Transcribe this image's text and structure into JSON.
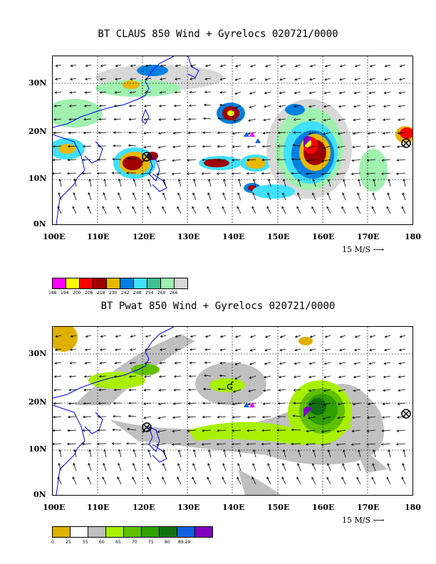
{
  "panel1": {
    "title": "BT CLAUS 850 Wind + Gyrelocs 020721/0000",
    "lat_labels": [
      "30N",
      "20N",
      "10N",
      "0N"
    ],
    "lon_labels": [
      "100E",
      "110E",
      "120E",
      "130E",
      "140E",
      "150E",
      "160E",
      "170E",
      "180"
    ],
    "scale_label": "15 M/S",
    "legend_colors": [
      "#ff00ff",
      "#ffff00",
      "#ff0000",
      "#a00000",
      "#e8b800",
      "#0080e0",
      "#40e0ff",
      "#40c090",
      "#a0f0b0",
      "#d8d8d8"
    ],
    "legend_ticks": [
      "188",
      "194",
      "200",
      "206",
      "218",
      "230",
      "242",
      "248",
      "254",
      "260",
      "266"
    ]
  },
  "panel2": {
    "title": "BT Pwat 850 Wind + Gyrelocs 020721/0000",
    "lat_labels": [
      "30N",
      "20N",
      "10N",
      "0N"
    ],
    "lon_labels": [
      "100E",
      "110E",
      "120E",
      "130E",
      "140E",
      "150E",
      "160E",
      "170E",
      "180"
    ],
    "scale_label": "15 M/S",
    "legend_colors": [
      "#e0b000",
      "#ffffff",
      "#c0c0c0",
      "#a8f000",
      "#60c000",
      "#30a000",
      "#107010",
      "#1060e0",
      "#8000c0"
    ],
    "legend_ticks": [
      "0",
      "25",
      "55",
      "60",
      "65",
      "70",
      "75",
      "80",
      "89.29"
    ]
  },
  "colors": {
    "coast": "#0000ff",
    "grid": "#000000"
  }
}
